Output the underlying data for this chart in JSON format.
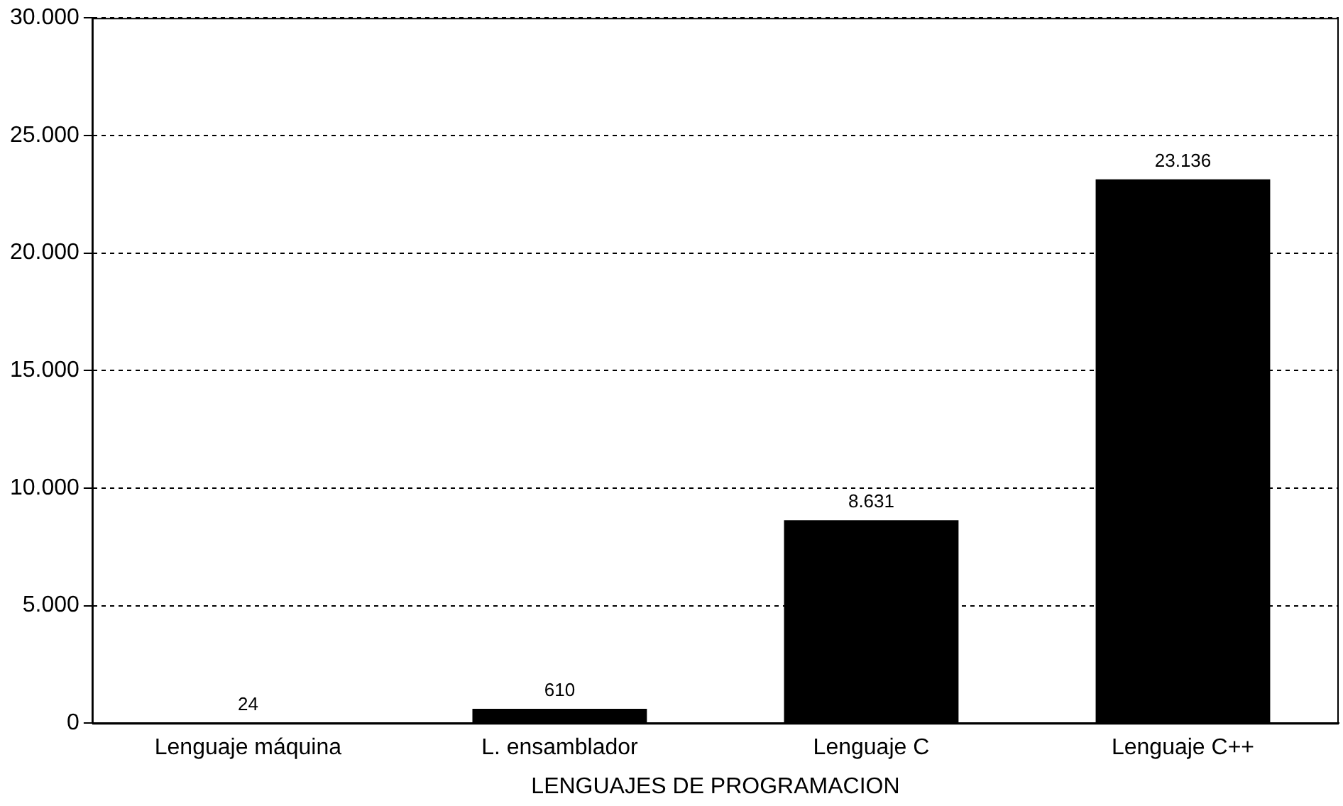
{
  "chart_data": {
    "type": "bar",
    "xlabel": "LENGUAJES DE PROGRAMACION",
    "categories": [
      "Lenguaje máquina",
      "L. ensamblador",
      "Lenguaje C",
      "Lenguaje C++"
    ],
    "values": [
      24,
      610,
      8631,
      23136
    ],
    "color": "#000000",
    "value_labels": [
      "24",
      "610",
      "8.631",
      "23.136"
    ],
    "ylim": [
      0,
      30000
    ],
    "yticks": [
      0,
      {
        "value": 5000,
        "label": "5.000"
      },
      {
        "value": 10000,
        "label": "10.000"
      },
      {
        "value": 15000,
        "label": "15.000"
      },
      {
        "value": 20000,
        "label": "20.000"
      },
      {
        "value": 25000,
        "label": "25.000"
      },
      {
        "value": 30000,
        "label": "30.000"
      }
    ],
    "grid": "y"
  }
}
